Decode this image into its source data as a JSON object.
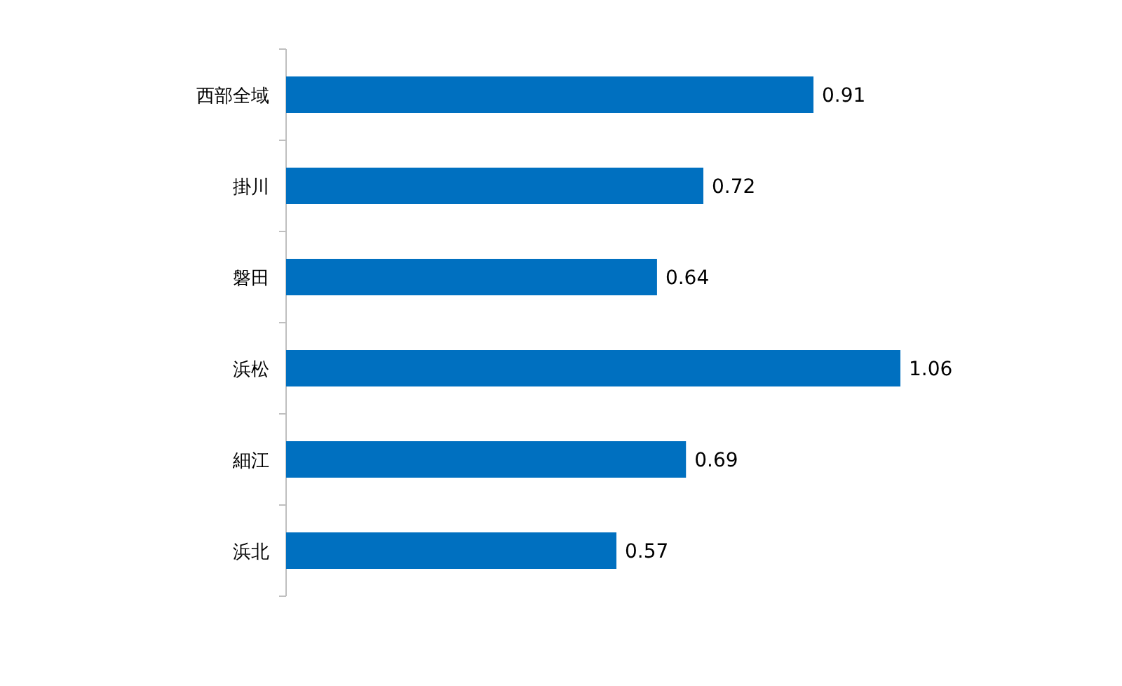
{
  "chart_data": {
    "type": "bar",
    "orientation": "horizontal",
    "categories": [
      "西部全域",
      "掛川",
      "磐田",
      "浜松",
      "細江",
      "浜北"
    ],
    "values": [
      0.91,
      0.72,
      0.64,
      1.06,
      0.69,
      0.57
    ],
    "color": "#0070c0",
    "data_labels": true
  }
}
